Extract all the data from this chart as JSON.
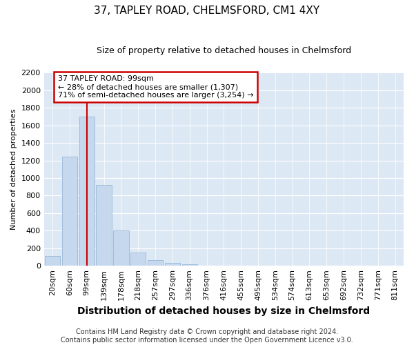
{
  "title": "37, TAPLEY ROAD, CHELMSFORD, CM1 4XY",
  "subtitle": "Size of property relative to detached houses in Chelmsford",
  "xlabel": "Distribution of detached houses by size in Chelmsford",
  "ylabel": "Number of detached properties",
  "bar_labels": [
    "20sqm",
    "60sqm",
    "99sqm",
    "139sqm",
    "178sqm",
    "218sqm",
    "257sqm",
    "297sqm",
    "336sqm",
    "376sqm",
    "416sqm",
    "455sqm",
    "495sqm",
    "534sqm",
    "574sqm",
    "613sqm",
    "653sqm",
    "692sqm",
    "732sqm",
    "771sqm",
    "811sqm"
  ],
  "bar_values": [
    115,
    1240,
    1700,
    920,
    400,
    150,
    65,
    30,
    20,
    0,
    0,
    0,
    0,
    0,
    0,
    0,
    0,
    0,
    0,
    0,
    0
  ],
  "bar_color": "#c5d8ed",
  "bar_edge_color": "#9ab8d8",
  "property_line_x": 2,
  "annotation_text": "37 TAPLEY ROAD: 99sqm\n← 28% of detached houses are smaller (1,307)\n71% of semi-detached houses are larger (3,254) →",
  "annotation_box_facecolor": "#ffffff",
  "annotation_box_edgecolor": "#cc0000",
  "vline_color": "#cc0000",
  "ylim": [
    0,
    2200
  ],
  "yticks": [
    0,
    200,
    400,
    600,
    800,
    1000,
    1200,
    1400,
    1600,
    1800,
    2000,
    2200
  ],
  "footer": "Contains HM Land Registry data © Crown copyright and database right 2024.\nContains public sector information licensed under the Open Government Licence v3.0.",
  "bg_color": "#dde8f5",
  "title_fontsize": 11,
  "subtitle_fontsize": 9,
  "xlabel_fontsize": 10,
  "ylabel_fontsize": 8,
  "tick_fontsize": 8,
  "annotation_fontsize": 8,
  "footer_fontsize": 7
}
